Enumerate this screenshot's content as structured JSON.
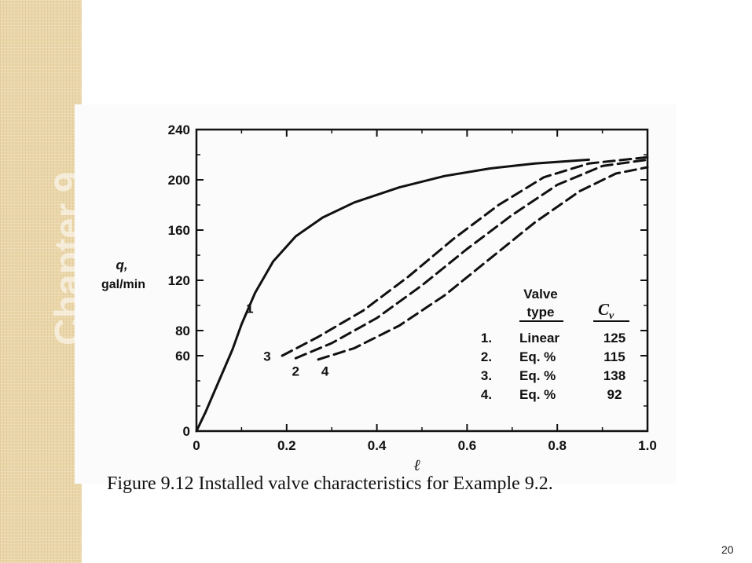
{
  "chart_data": {
    "type": "line",
    "xlabel": "ℓ",
    "ylabel_line1": "q,",
    "ylabel_line2": "gal/min",
    "xlim": [
      0,
      1.0
    ],
    "ylim": [
      0,
      240
    ],
    "xticks": [
      "0",
      "0.2",
      "0.4",
      "0.6",
      "0.8",
      "1.0"
    ],
    "yticks": [
      "0",
      "60",
      "80",
      "120",
      "160",
      "200",
      "240"
    ],
    "ytick_values": [
      0,
      60,
      80,
      120,
      160,
      200,
      240
    ],
    "grid": false,
    "series": [
      {
        "name": "1",
        "style": "solid",
        "points": [
          [
            0,
            0
          ],
          [
            0.02,
            15
          ],
          [
            0.05,
            40
          ],
          [
            0.08,
            65
          ],
          [
            0.1,
            85
          ],
          [
            0.13,
            110
          ],
          [
            0.17,
            135
          ],
          [
            0.22,
            155
          ],
          [
            0.28,
            170
          ],
          [
            0.35,
            182
          ],
          [
            0.45,
            194
          ],
          [
            0.55,
            203
          ],
          [
            0.65,
            209
          ],
          [
            0.75,
            213
          ],
          [
            0.87,
            216
          ]
        ]
      },
      {
        "name": "2",
        "style": "dashed",
        "points": [
          [
            0.22,
            58
          ],
          [
            0.3,
            70
          ],
          [
            0.4,
            90
          ],
          [
            0.5,
            116
          ],
          [
            0.6,
            145
          ],
          [
            0.7,
            172
          ],
          [
            0.8,
            196
          ],
          [
            0.9,
            211
          ],
          [
            1.0,
            216
          ]
        ]
      },
      {
        "name": "3",
        "style": "dashed",
        "points": [
          [
            0.19,
            60
          ],
          [
            0.27,
            75
          ],
          [
            0.37,
            96
          ],
          [
            0.47,
            123
          ],
          [
            0.57,
            153
          ],
          [
            0.67,
            180
          ],
          [
            0.77,
            202
          ],
          [
            0.87,
            213
          ],
          [
            1.0,
            218
          ]
        ]
      },
      {
        "name": "4",
        "style": "dashed",
        "points": [
          [
            0.27,
            57
          ],
          [
            0.35,
            66
          ],
          [
            0.45,
            84
          ],
          [
            0.55,
            108
          ],
          [
            0.65,
            137
          ],
          [
            0.75,
            166
          ],
          [
            0.85,
            191
          ],
          [
            0.93,
            205
          ],
          [
            1.0,
            210
          ]
        ]
      }
    ],
    "legend_table": {
      "header_type_line1": "Valve",
      "header_type_line2": "type",
      "header_cv": "C",
      "header_cv_sub": "v",
      "rows": [
        {
          "num": "1.",
          "type": "Linear",
          "cv": "125"
        },
        {
          "num": "2.",
          "type": "Eq. %",
          "cv": "115"
        },
        {
          "num": "3.",
          "type": "Eq. %",
          "cv": "138"
        },
        {
          "num": "4.",
          "type": "Eq. %",
          "cv": "92"
        }
      ]
    }
  },
  "caption": "Figure 9.12 Installed valve characteristics for Example 9.2.",
  "page_number": "20",
  "sidebar_watermark": "Chapter 9"
}
